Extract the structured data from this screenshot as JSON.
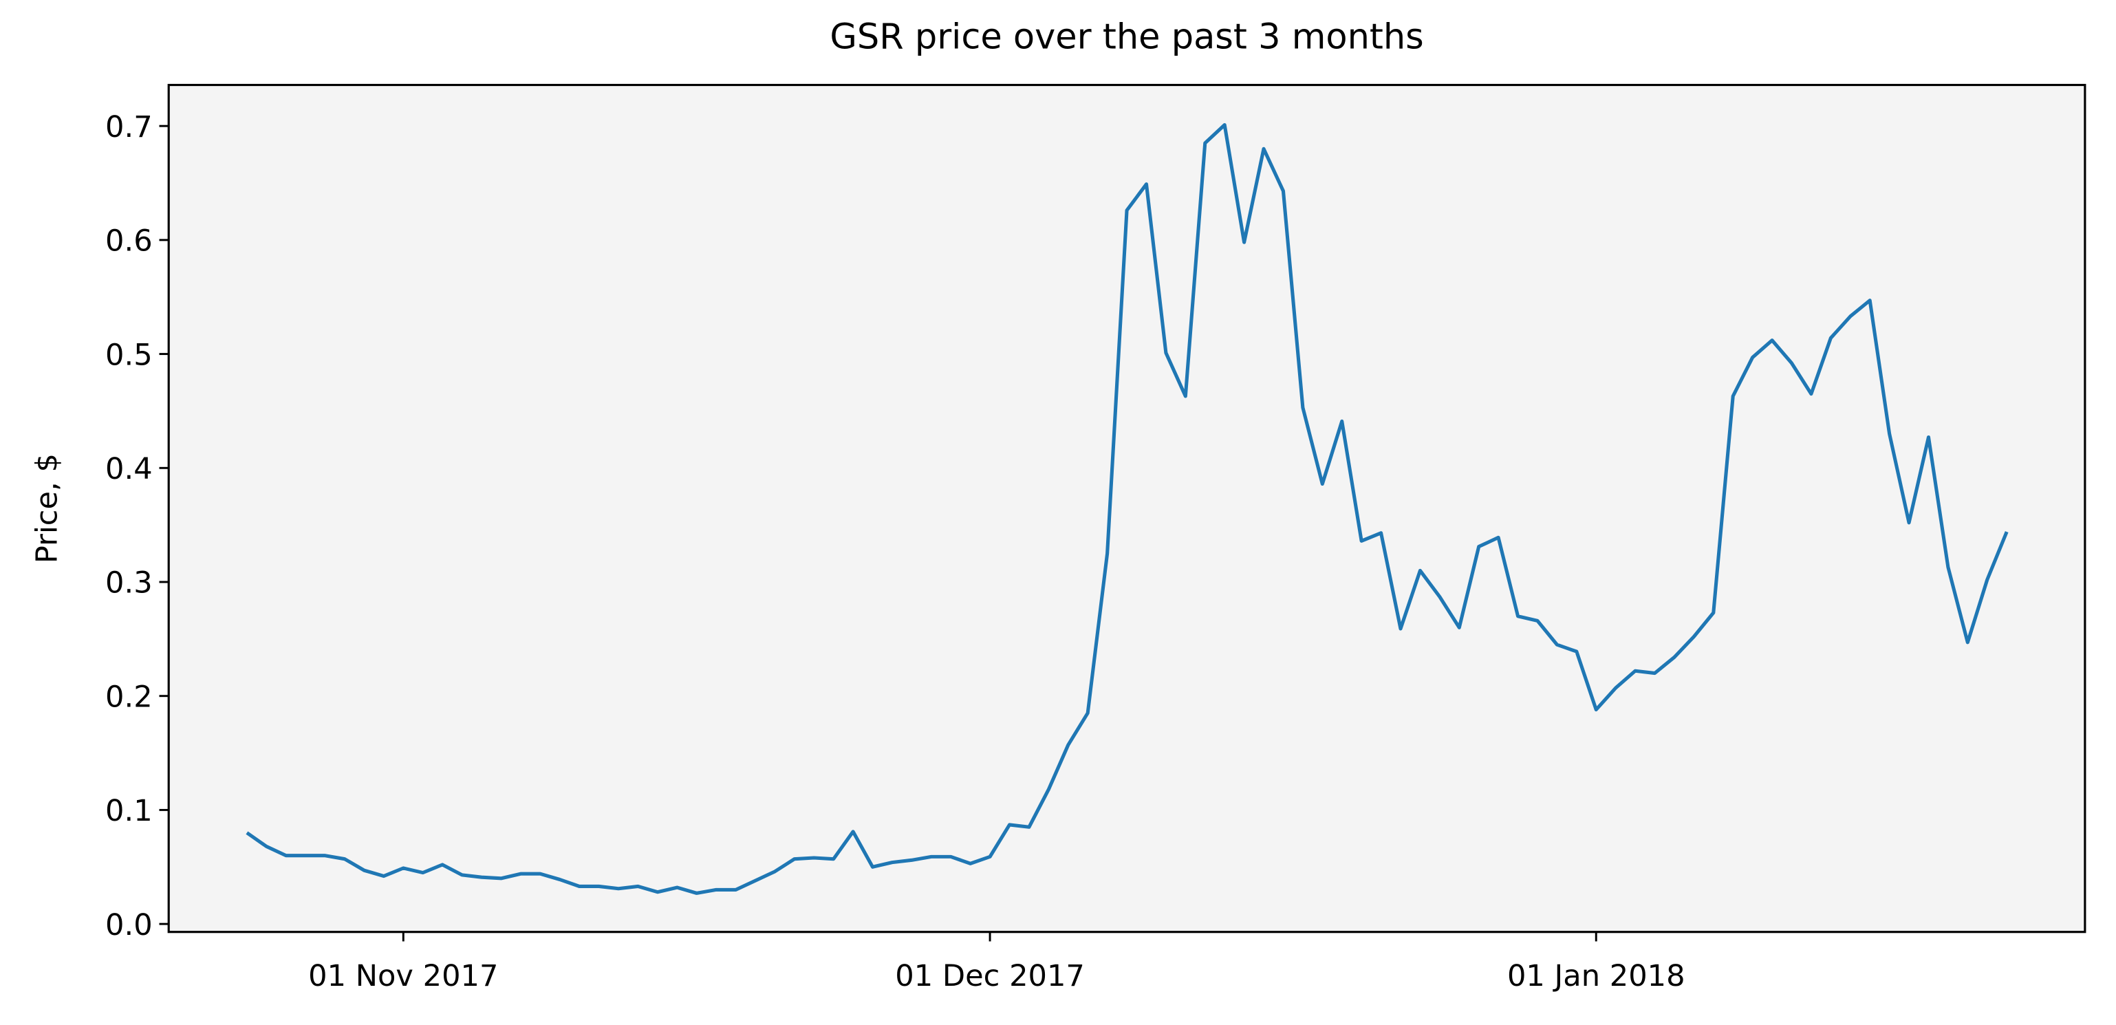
{
  "chart_data": {
    "type": "line",
    "title": "GSR price over the past 3 months",
    "y_label": "Price, $",
    "color": "#1f77b4",
    "x": [
      "2017-10-24",
      "2017-10-25",
      "2017-10-26",
      "2017-10-27",
      "2017-10-28",
      "2017-10-29",
      "2017-10-30",
      "2017-10-31",
      "2017-11-01",
      "2017-11-02",
      "2017-11-03",
      "2017-11-04",
      "2017-11-05",
      "2017-11-06",
      "2017-11-07",
      "2017-11-08",
      "2017-11-09",
      "2017-11-10",
      "2017-11-11",
      "2017-11-12",
      "2017-11-13",
      "2017-11-14",
      "2017-11-15",
      "2017-11-16",
      "2017-11-17",
      "2017-11-18",
      "2017-11-19",
      "2017-11-20",
      "2017-11-21",
      "2017-11-22",
      "2017-11-23",
      "2017-11-24",
      "2017-11-25",
      "2017-11-26",
      "2017-11-27",
      "2017-11-28",
      "2017-11-29",
      "2017-11-30",
      "2017-12-01",
      "2017-12-02",
      "2017-12-03",
      "2017-12-04",
      "2017-12-05",
      "2017-12-06",
      "2017-12-07",
      "2017-12-08",
      "2017-12-09",
      "2017-12-10",
      "2017-12-11",
      "2017-12-12",
      "2017-12-13",
      "2017-12-14",
      "2017-12-15",
      "2017-12-16",
      "2017-12-17",
      "2017-12-18",
      "2017-12-19",
      "2017-12-20",
      "2017-12-21",
      "2017-12-22",
      "2017-12-23",
      "2017-12-24",
      "2017-12-25",
      "2017-12-26",
      "2017-12-27",
      "2017-12-28",
      "2017-12-29",
      "2017-12-30",
      "2017-12-31",
      "2018-01-01",
      "2018-01-02",
      "2018-01-03",
      "2018-01-04",
      "2018-01-05",
      "2018-01-06",
      "2018-01-07",
      "2018-01-08",
      "2018-01-09",
      "2018-01-10",
      "2018-01-11",
      "2018-01-12",
      "2018-01-13",
      "2018-01-14",
      "2018-01-15",
      "2018-01-16",
      "2018-01-17",
      "2018-01-18",
      "2018-01-19",
      "2018-01-20",
      "2018-01-21",
      "2018-01-22"
    ],
    "values": [
      0.08,
      0.068,
      0.06,
      0.06,
      0.06,
      0.057,
      0.047,
      0.042,
      0.049,
      0.045,
      0.052,
      0.043,
      0.041,
      0.04,
      0.044,
      0.044,
      0.039,
      0.033,
      0.033,
      0.031,
      0.033,
      0.028,
      0.032,
      0.027,
      0.03,
      0.03,
      0.038,
      0.046,
      0.057,
      0.058,
      0.057,
      0.081,
      0.05,
      0.054,
      0.056,
      0.059,
      0.059,
      0.053,
      0.059,
      0.087,
      0.085,
      0.118,
      0.157,
      0.185,
      0.325,
      0.626,
      0.649,
      0.501,
      0.463,
      0.685,
      0.701,
      0.598,
      0.68,
      0.643,
      0.453,
      0.386,
      0.441,
      0.336,
      0.343,
      0.259,
      0.31,
      0.287,
      0.26,
      0.331,
      0.339,
      0.27,
      0.266,
      0.245,
      0.239,
      0.188,
      0.207,
      0.222,
      0.22,
      0.234,
      0.252,
      0.273,
      0.463,
      0.497,
      0.512,
      0.492,
      0.465,
      0.514,
      0.533,
      0.547,
      0.43,
      0.352,
      0.427,
      0.313,
      0.247,
      0.302,
      0.344
    ],
    "xlim": [
      "2017-10-20",
      "2018-01-26"
    ],
    "xticks": [
      {
        "value": "2017-11-01",
        "label": "01 Nov 2017"
      },
      {
        "value": "2017-12-01",
        "label": "01 Dec 2017"
      },
      {
        "value": "2018-01-01",
        "label": "01 Jan 2018"
      }
    ],
    "ylim": [
      -0.007,
      0.736
    ],
    "yticks": [
      {
        "value": 0,
        "label": "0.0"
      },
      0.1,
      0.2,
      0.3,
      0.4,
      0.5,
      0.6,
      0.7
    ],
    "background": "#f4f4f4",
    "grid": false
  }
}
